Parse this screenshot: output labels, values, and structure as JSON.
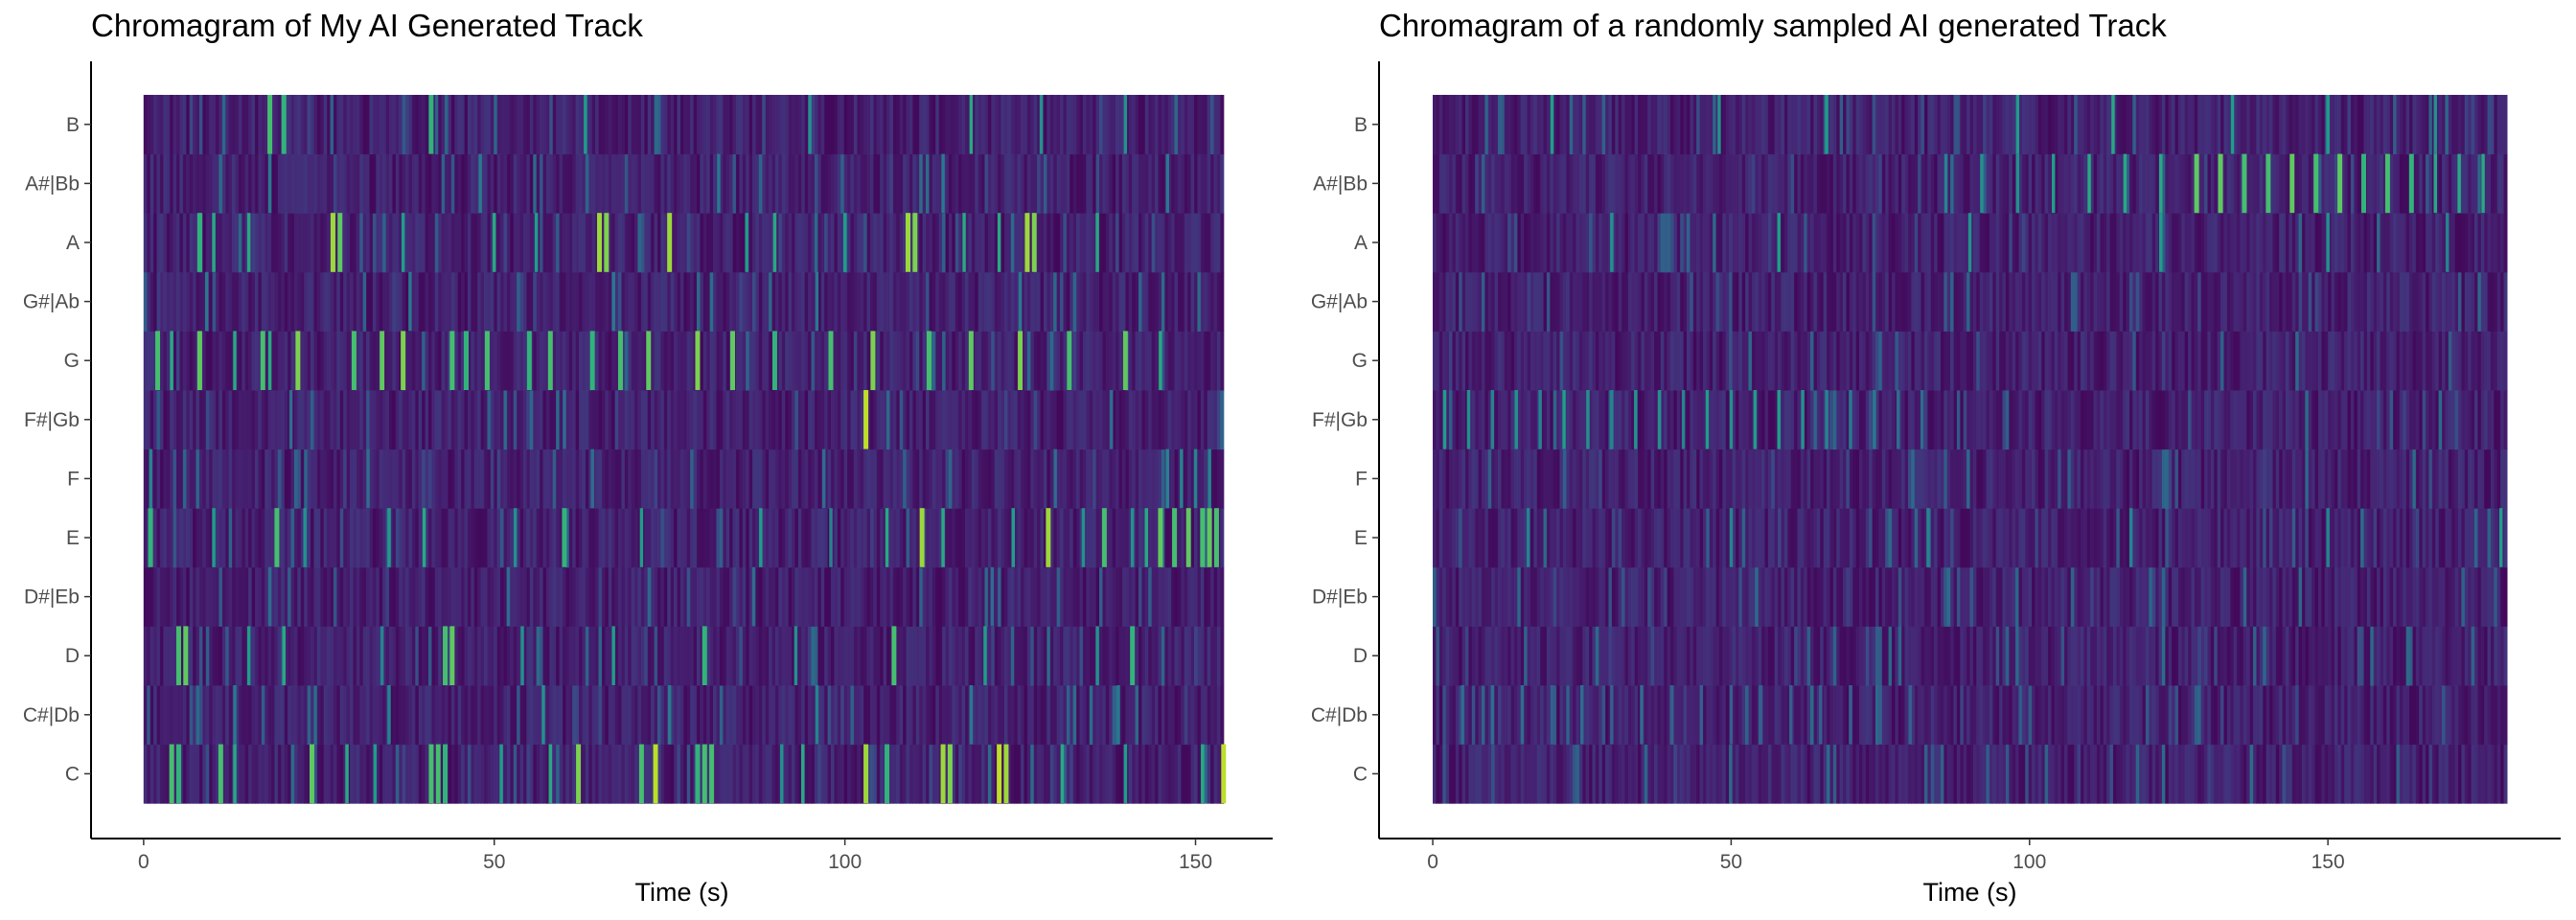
{
  "chart_data": [
    {
      "type": "heatmap",
      "title": "Chromagram of My AI Generated Track",
      "xlabel": "Time (s)",
      "ylabel": "",
      "xlim": [
        -7.5,
        161
      ],
      "x_ticks": [
        0,
        50,
        100,
        150
      ],
      "x_range": [
        0,
        154
      ],
      "pitch_classes": [
        "C",
        "C#|Db",
        "D",
        "D#|Eb",
        "E",
        "F",
        "F#|Gb",
        "G",
        "G#|Ab",
        "A",
        "A#|Bb",
        "B"
      ],
      "colormap": [
        "#440154",
        "#482878",
        "#3e4a89",
        "#31688e",
        "#26828e",
        "#1f9e89",
        "#35b779",
        "#6ece58",
        "#b5de2b",
        "#fde725"
      ],
      "background_color": "#2d0a55",
      "grid": false,
      "legend": "none",
      "highlights": [
        {
          "pitch": "C",
          "time": [
            4,
            5,
            11,
            13,
            24,
            29,
            33,
            41,
            42,
            43,
            51,
            58,
            62,
            71,
            73,
            79,
            80,
            81,
            91,
            94,
            103,
            106,
            114,
            115,
            122,
            123,
            131,
            140,
            151,
            154
          ],
          "level": [
            0.7,
            0.65,
            0.7,
            0.6,
            0.75,
            0.6,
            0.55,
            0.7,
            0.7,
            0.65,
            0.55,
            0.6,
            0.8,
            0.7,
            0.9,
            0.65,
            0.7,
            0.7,
            0.5,
            0.6,
            0.85,
            0.65,
            0.85,
            0.8,
            0.9,
            0.85,
            0.6,
            0.55,
            0.6,
            0.9
          ]
        },
        {
          "pitch": "C#|Db",
          "time": [
            13,
            35,
            57,
            75,
            96,
            118,
            139
          ],
          "level": [
            0.4,
            0.45,
            0.5,
            0.4,
            0.45,
            0.4,
            0.4
          ]
        },
        {
          "pitch": "D",
          "time": [
            5,
            6,
            15,
            20,
            34,
            43,
            44,
            54,
            67,
            80,
            93,
            107,
            120,
            136,
            141
          ],
          "level": [
            0.7,
            0.75,
            0.55,
            0.6,
            0.45,
            0.7,
            0.75,
            0.5,
            0.55,
            0.65,
            0.5,
            0.7,
            0.55,
            0.5,
            0.65
          ]
        },
        {
          "pitch": "D#|Eb",
          "time": [
            18,
            52,
            87,
            121
          ],
          "level": [
            0.35,
            0.35,
            0.35,
            0.35
          ]
        },
        {
          "pitch": "E",
          "time": [
            1,
            10,
            19,
            23,
            35,
            40,
            53,
            60,
            71,
            88,
            98,
            106,
            111,
            114,
            124,
            129,
            134,
            137,
            141,
            143,
            145,
            147,
            149,
            151,
            152,
            153
          ],
          "level": [
            0.65,
            0.55,
            0.7,
            0.5,
            0.55,
            0.6,
            0.5,
            0.65,
            0.55,
            0.55,
            0.45,
            0.6,
            0.85,
            0.6,
            0.55,
            0.85,
            0.5,
            0.7,
            0.5,
            0.6,
            0.75,
            0.7,
            0.75,
            0.7,
            0.75,
            0.7
          ]
        },
        {
          "pitch": "F",
          "time": [
            1,
            32,
            64,
            97,
            130,
            146,
            148,
            150,
            152
          ],
          "level": [
            0.45,
            0.35,
            0.35,
            0.35,
            0.35,
            0.45,
            0.45,
            0.45,
            0.45
          ]
        },
        {
          "pitch": "F#|Gb",
          "time": [
            21,
            60,
            103,
            138
          ],
          "level": [
            0.35,
            0.35,
            0.9,
            0.35
          ]
        },
        {
          "pitch": "G",
          "time": [
            2,
            4,
            8,
            13,
            17,
            18,
            22,
            30,
            34,
            37,
            44,
            46,
            49,
            55,
            58,
            64,
            68,
            72,
            79,
            84,
            90,
            98,
            104,
            112,
            118,
            125,
            132,
            140,
            145
          ],
          "level": [
            0.7,
            0.6,
            0.75,
            0.6,
            0.7,
            0.6,
            0.8,
            0.7,
            0.75,
            0.8,
            0.7,
            0.65,
            0.7,
            0.65,
            0.7,
            0.65,
            0.7,
            0.75,
            0.8,
            0.75,
            0.65,
            0.7,
            0.8,
            0.7,
            0.75,
            0.8,
            0.7,
            0.75,
            0.6
          ]
        },
        {
          "pitch": "G#|Ab",
          "time": [
            9,
            38,
            67,
            96,
            125
          ],
          "level": [
            0.4,
            0.4,
            0.4,
            0.4,
            0.4
          ]
        },
        {
          "pitch": "A",
          "time": [
            8,
            10,
            15,
            27,
            28,
            37,
            50,
            56,
            65,
            66,
            75,
            86,
            90,
            100,
            109,
            110,
            117,
            122,
            126,
            127,
            136
          ],
          "level": [
            0.65,
            0.6,
            0.6,
            0.85,
            0.75,
            0.55,
            0.6,
            0.55,
            0.85,
            0.8,
            0.85,
            0.55,
            0.6,
            0.55,
            0.85,
            0.8,
            0.6,
            0.6,
            0.85,
            0.8,
            0.6
          ]
        },
        {
          "pitch": "A#|Bb",
          "time": [
            18,
            48,
            82,
            114,
            146
          ],
          "level": [
            0.4,
            0.4,
            0.4,
            0.4,
            0.4
          ]
        },
        {
          "pitch": "B",
          "time": [
            18,
            20,
            41,
            63,
            95,
            118,
            128,
            140
          ],
          "level": [
            0.7,
            0.65,
            0.65,
            0.55,
            0.5,
            0.6,
            0.5,
            0.5
          ]
        }
      ]
    },
    {
      "type": "heatmap",
      "title": "Chromagram of a randomly sampled AI generated Track",
      "xlabel": "Time (s)",
      "ylabel": "",
      "xlim": [
        -9,
        189
      ],
      "x_ticks": [
        0,
        50,
        100,
        150
      ],
      "x_range": [
        0,
        180
      ],
      "pitch_classes": [
        "C",
        "C#|Db",
        "D",
        "D#|Eb",
        "E",
        "F",
        "F#|Gb",
        "G",
        "G#|Ab",
        "A",
        "A#|Bb",
        "B"
      ],
      "colormap": [
        "#440154",
        "#482878",
        "#3e4a89",
        "#31688e",
        "#26828e",
        "#1f9e89",
        "#35b779",
        "#6ece58",
        "#b5de2b",
        "#fde725"
      ],
      "background_color": "#2d0a55",
      "grid": false,
      "legend": "none",
      "highlights": [
        {
          "pitch": "C#|Db",
          "time": [
            5,
            10,
            15,
            20,
            25,
            30,
            35,
            40,
            45,
            50,
            55,
            60,
            65,
            70,
            75,
            80
          ],
          "level": [
            0.35,
            0.35,
            0.35,
            0.3,
            0.35,
            0.3,
            0.35,
            0.3,
            0.3,
            0.3,
            0.3,
            0.3,
            0.3,
            0.3,
            0.3,
            0.3
          ]
        },
        {
          "pitch": "F#|Gb",
          "time": [
            2,
            6,
            10,
            14,
            18,
            22,
            26,
            30,
            34,
            38,
            42,
            46,
            50,
            54,
            58,
            62,
            66,
            70,
            74,
            78,
            82
          ],
          "level": [
            0.55,
            0.5,
            0.45,
            0.5,
            0.45,
            0.55,
            0.5,
            0.45,
            0.5,
            0.5,
            0.45,
            0.55,
            0.5,
            0.55,
            0.55,
            0.5,
            0.45,
            0.4,
            0.4,
            0.35,
            0.35
          ]
        },
        {
          "pitch": "A#|Bb",
          "time": [
            86,
            92,
            98,
            104,
            110,
            116,
            122,
            128,
            132,
            136,
            140,
            144,
            148,
            152,
            156,
            160,
            164,
            168,
            172,
            176
          ],
          "level": [
            0.45,
            0.5,
            0.5,
            0.55,
            0.6,
            0.6,
            0.6,
            0.75,
            0.75,
            0.7,
            0.7,
            0.75,
            0.7,
            0.75,
            0.65,
            0.7,
            0.65,
            0.6,
            0.6,
            0.6
          ]
        },
        {
          "pitch": "B",
          "time": [
            20,
            48,
            66,
            98,
            114,
            134,
            150,
            168
          ],
          "level": [
            0.55,
            0.5,
            0.55,
            0.55,
            0.6,
            0.55,
            0.55,
            0.5
          ]
        },
        {
          "pitch": "A",
          "time": [
            30,
            58,
            90,
            122,
            150,
            170
          ],
          "level": [
            0.5,
            0.55,
            0.5,
            0.55,
            0.5,
            0.45
          ]
        },
        {
          "pitch": "E",
          "time": [
            16,
            50,
            83,
            117,
            150,
            179
          ],
          "level": [
            0.45,
            0.45,
            0.45,
            0.45,
            0.45,
            0.55
          ]
        }
      ]
    }
  ]
}
